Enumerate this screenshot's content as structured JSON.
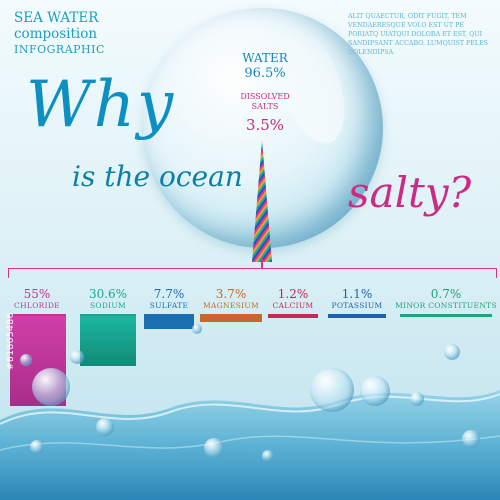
{
  "header": {
    "title_line1": "SEA WATER",
    "title_line2": "composition",
    "title_line3": "INFOGRAPHIC",
    "lorem": "Alit quaectur, odit fugit, tem vendaeresque volo est ut pe poriatq uiatqui dolora et est, qui sandipsant accabo. Lumquist peles dolendipsa"
  },
  "headline": {
    "why": "Why",
    "is_the_ocean": "is the ocean",
    "salty": "salty?"
  },
  "bubble": {
    "water_label": "WATER",
    "water_value": "96.5%",
    "salts_label": "DISSOLVED SALTS",
    "salts_value": "3.5%"
  },
  "components": [
    {
      "name": "CHLORIDE",
      "value": "55%",
      "color": "#c0369b"
    },
    {
      "name": "SODIUM",
      "value": "30.6%",
      "color": "#17a892"
    },
    {
      "name": "SULFATE",
      "value": "7.7%",
      "color": "#1a6fb0"
    },
    {
      "name": "MAGNESIUM",
      "value": "3.7%",
      "color": "#c9672a"
    },
    {
      "name": "CALCIUM",
      "value": "1.2%",
      "color": "#c42a55"
    },
    {
      "name": "POTASSIUM",
      "value": "1.1%",
      "color": "#1d63ad"
    },
    {
      "name": "MINOR CONSTITUENTS",
      "value": "0.7%",
      "color": "#23a37a"
    }
  ],
  "watermark": "#81805486",
  "colors": {
    "accent_blue": "#1a86b6",
    "accent_pink": "#c42a7d"
  }
}
